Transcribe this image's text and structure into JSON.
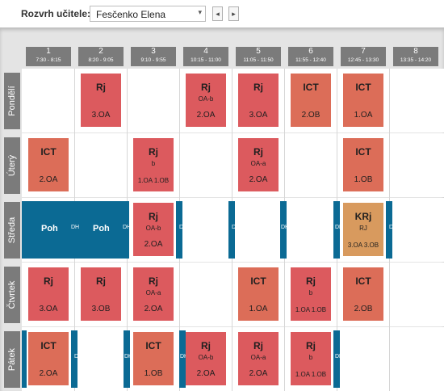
{
  "toolbar": {
    "label": "Rozvrh učitele:",
    "teacher": "Fesčenko Elena",
    "prev_icon": "◂",
    "next_icon": "▸",
    "dropdown_icon": "▾"
  },
  "periods": [
    {
      "num": "1",
      "time": "7:30 -  8:15"
    },
    {
      "num": "2",
      "time": "8:20 -  9:05"
    },
    {
      "num": "3",
      "time": "9:10 -  9:55"
    },
    {
      "num": "4",
      "time": "10:15 - 11:00"
    },
    {
      "num": "5",
      "time": "11:05 - 11:50"
    },
    {
      "num": "6",
      "time": "11:55 - 12:40"
    },
    {
      "num": "7",
      "time": "12:45 - 13:30"
    },
    {
      "num": "8",
      "time": "13:35 - 14:20"
    }
  ],
  "days": [
    "Pondělí",
    "Úterý",
    "Středa",
    "Čtvrtek",
    "Pátek"
  ],
  "lessons": {
    "mon_2": {
      "subject": "Rj",
      "group": "",
      "classes": "3.OA"
    },
    "mon_4": {
      "subject": "Rj",
      "group": "OA-b",
      "classes": "2.OA"
    },
    "mon_5": {
      "subject": "Rj",
      "group": "",
      "classes": "3.OA"
    },
    "mon_6": {
      "subject": "ICT",
      "group": "",
      "classes": "2.OB"
    },
    "mon_7": {
      "subject": "ICT",
      "group": "",
      "classes": "1.OA"
    },
    "tue_1": {
      "subject": "ICT",
      "group": "",
      "classes": "2.OA"
    },
    "tue_3": {
      "subject": "Rj",
      "group": "b",
      "classes": "1.OA  1.OB"
    },
    "tue_5": {
      "subject": "Rj",
      "group": "OA-a",
      "classes": "2.OA"
    },
    "tue_7": {
      "subject": "ICT",
      "group": "",
      "classes": "1.OB"
    },
    "wed_3": {
      "subject": "Rj",
      "group": "OA-b",
      "classes": "2.OA"
    },
    "wed_7": {
      "subject": "KRj",
      "group": "RJ",
      "classes": "3.OA  3.OB"
    },
    "thu_1": {
      "subject": "Rj",
      "group": "",
      "classes": "3.OA"
    },
    "thu_2": {
      "subject": "Rj",
      "group": "",
      "classes": "3.OB"
    },
    "thu_3": {
      "subject": "Rj",
      "group": "OA-a",
      "classes": "2.OA"
    },
    "thu_5": {
      "subject": "ICT",
      "group": "",
      "classes": "1.OA"
    },
    "thu_6": {
      "subject": "Rj",
      "group": "b",
      "classes": "1.OA  1.OB"
    },
    "thu_7": {
      "subject": "ICT",
      "group": "",
      "classes": "2.OB"
    },
    "fri_1": {
      "subject": "ICT",
      "group": "",
      "classes": "2.OA"
    },
    "fri_3": {
      "subject": "ICT",
      "group": "",
      "classes": "1.OB"
    },
    "fri_4": {
      "subject": "Rj",
      "group": "OA-b",
      "classes": "2.OA"
    },
    "fri_5": {
      "subject": "Rj",
      "group": "OA-a",
      "classes": "2.OA"
    },
    "fri_6": {
      "subject": "Rj",
      "group": "b",
      "classes": "1.OA  1.OB"
    }
  },
  "duty": {
    "poh_label": "Poh",
    "dh_label": "DH"
  },
  "colors": {
    "lesson_red": "#dc5a5e",
    "lesson_orange": "#dc6d58",
    "lesson_tan": "#d89a5e",
    "duty_blue": "#0b6a94",
    "header_gray": "#7b7b7b"
  }
}
